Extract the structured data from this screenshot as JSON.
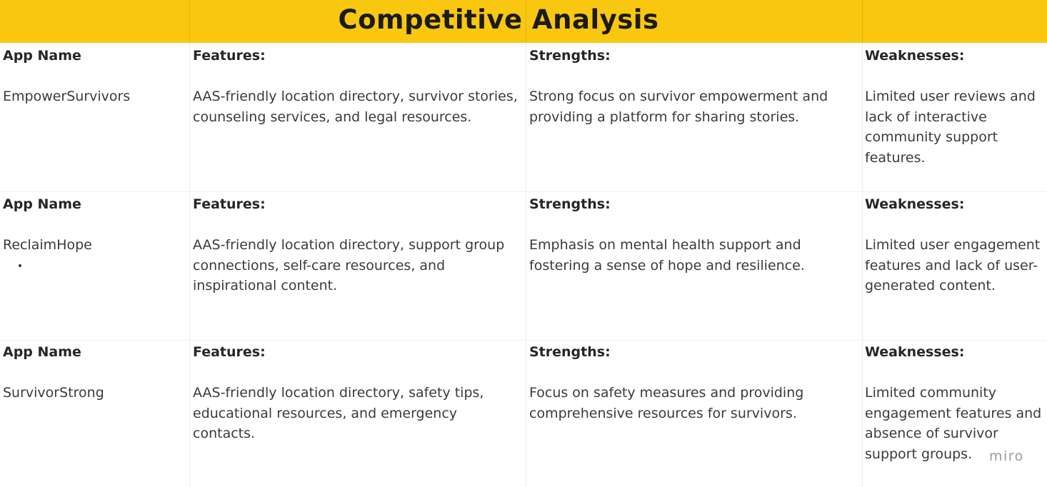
{
  "header": {
    "title": "Competitive Analysis"
  },
  "labels": {
    "app_name": "App Name",
    "features": "Features:",
    "strengths": "Strengths:",
    "weaknesses": "Weaknesses:"
  },
  "rows": [
    {
      "app": "EmpowerSurvivors",
      "features": "AAS-friendly location directory, survivor stories, counseling services, and legal resources.",
      "strengths": "Strong focus on survivor empowerment and providing a platform for sharing stories.",
      "weaknesses": "Limited user reviews and lack of interactive community support features."
    },
    {
      "app": "ReclaimHope",
      "features": "AAS-friendly location directory, support group connections, self-care resources, and inspirational content.",
      "strengths": "Emphasis on mental health support and fostering a sense of hope and resilience.",
      "weaknesses": "Limited user engagement features and lack of user-generated content."
    },
    {
      "app": "SurvivorStrong",
      "features": "AAS-friendly location directory, safety tips, educational resources, and emergency contacts.",
      "strengths": "Focus on safety measures and providing comprehensive resources for survivors.",
      "weaknesses": "Limited community engagement features and absence of survivor support groups."
    }
  ],
  "watermark": "miro"
}
